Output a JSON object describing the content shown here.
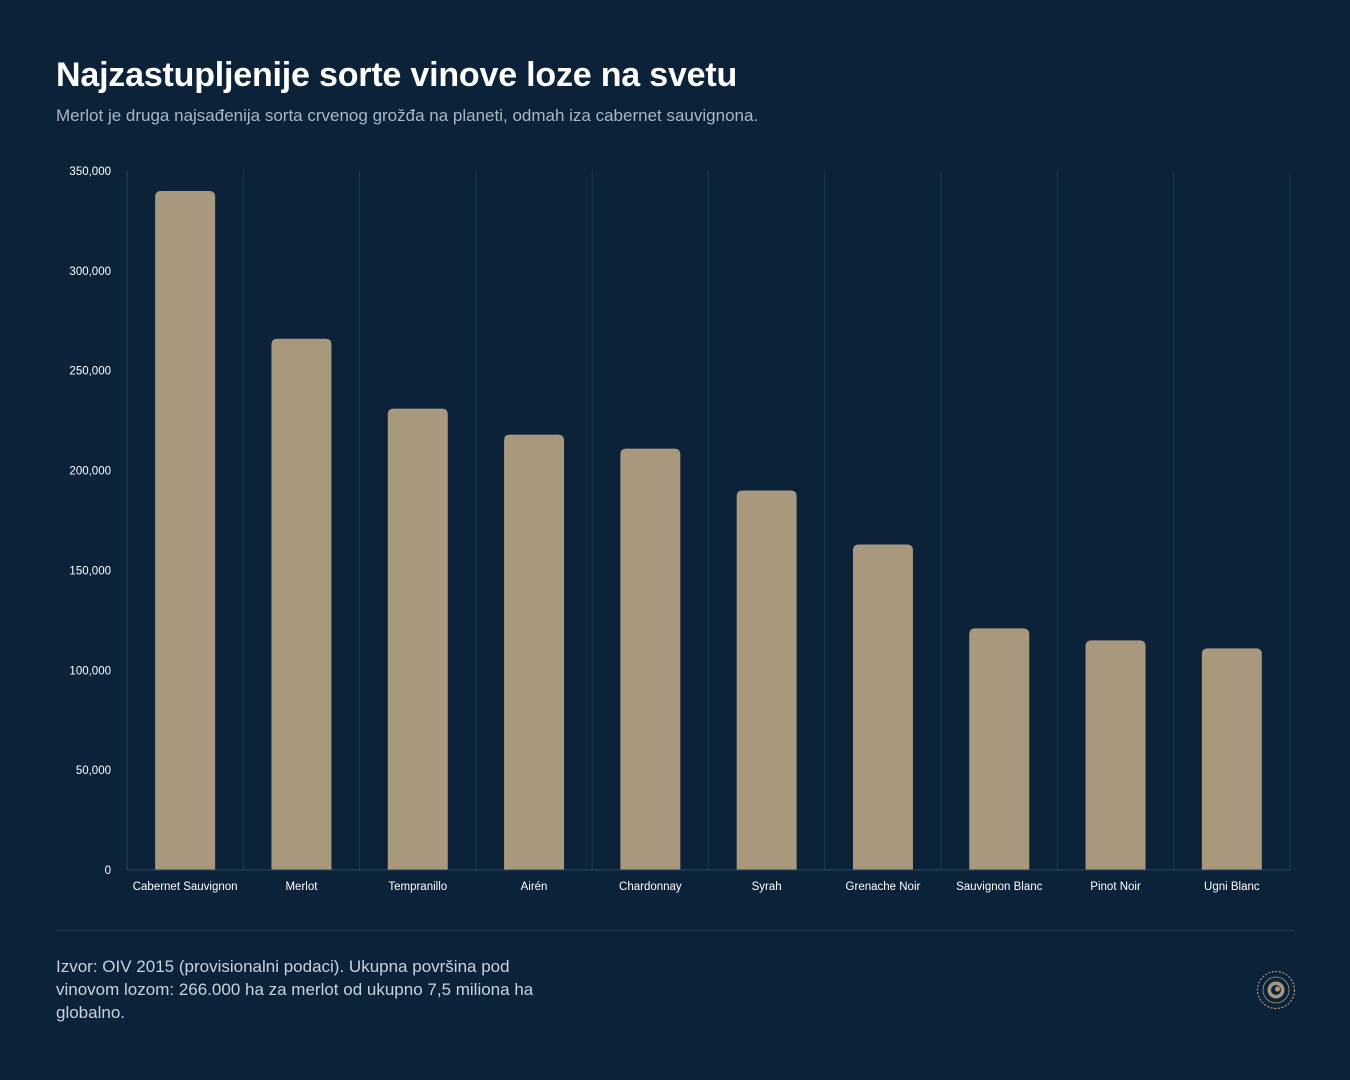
{
  "header": {
    "title": "Najzastupljenije sorte vinove loze na svetu",
    "subtitle": "Merlot je druga najsađenija sorta crvenog grožđa na planeti, odmah iza cabernet sauvignona."
  },
  "footer": {
    "source": "Izvor: OIV 2015 (provisionalni podaci). Ukupna površina pod vinovom lozom: 266.000 ha za merlot od ukupno 7,5 miliona ha globalno."
  },
  "colors": {
    "background": "#0b2239",
    "bar": "#a8987d",
    "grid": "#1f3a52",
    "tick_text": "#ffffff"
  },
  "chart_data": {
    "type": "bar",
    "categories": [
      "Cabernet Sauvignon",
      "Merlot",
      "Tempranillo",
      "Airén",
      "Chardonnay",
      "Syrah",
      "Grenache Noir",
      "Sauvignon Blanc",
      "Pinot Noir",
      "Ugni Blanc"
    ],
    "values": [
      340000,
      266000,
      231000,
      218000,
      211000,
      190000,
      163000,
      121000,
      115000,
      111000
    ],
    "ylim": [
      0,
      350000
    ],
    "yticks": [
      0,
      50000,
      100000,
      150000,
      200000,
      250000,
      300000,
      350000
    ],
    "ytick_labels": [
      "0",
      "50,000",
      "100,000",
      "150,000",
      "200,000",
      "250,000",
      "300,000",
      "350,000"
    ],
    "grid": "vertical",
    "legend": "none"
  }
}
